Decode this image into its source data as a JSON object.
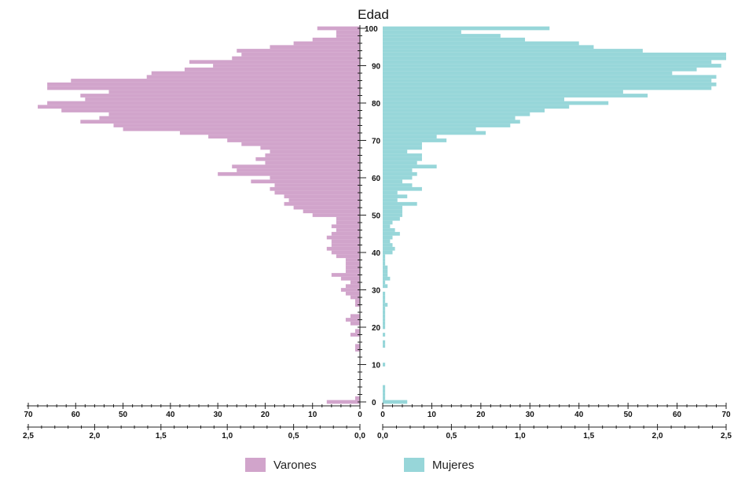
{
  "chart_data": {
    "type": "bar",
    "orientation": "horizontal-population-pyramid",
    "title": "Edad",
    "colors": {
      "varones": "#d1a4cb",
      "mujeres": "#97d6d9"
    },
    "y_axis": {
      "ticks": [
        0,
        10,
        20,
        30,
        40,
        50,
        60,
        70,
        80,
        90,
        100
      ],
      "range": [
        0,
        100
      ]
    },
    "x_axis_count": {
      "range": [
        0,
        70
      ],
      "ticks": [
        "0",
        "10",
        "20",
        "30",
        "40",
        "50",
        "60",
        "70"
      ]
    },
    "x_axis_percent": {
      "range": [
        0,
        2.5
      ],
      "ticks": [
        "0,0",
        "0,5",
        "1,0",
        "1,5",
        "2,0",
        "2,5"
      ]
    },
    "series": [
      {
        "name": "Varones",
        "x_unit": "count",
        "points": [
          {
            "edad": 0,
            "value": 7
          },
          {
            "edad": 1,
            "value": 1
          },
          {
            "edad": 14,
            "value": 1
          },
          {
            "edad": 15,
            "value": 1
          },
          {
            "edad": 18,
            "value": 2
          },
          {
            "edad": 19,
            "value": 1
          },
          {
            "edad": 21,
            "value": 2
          },
          {
            "edad": 22,
            "value": 3
          },
          {
            "edad": 23,
            "value": 2
          },
          {
            "edad": 26,
            "value": 1
          },
          {
            "edad": 27,
            "value": 1
          },
          {
            "edad": 28,
            "value": 2
          },
          {
            "edad": 29,
            "value": 3
          },
          {
            "edad": 30,
            "value": 4
          },
          {
            "edad": 31,
            "value": 3
          },
          {
            "edad": 32,
            "value": 2
          },
          {
            "edad": 33,
            "value": 4
          },
          {
            "edad": 34,
            "value": 6
          },
          {
            "edad": 35,
            "value": 3
          },
          {
            "edad": 36,
            "value": 3
          },
          {
            "edad": 37,
            "value": 3
          },
          {
            "edad": 38,
            "value": 3
          },
          {
            "edad": 39,
            "value": 5
          },
          {
            "edad": 40,
            "value": 6
          },
          {
            "edad": 41,
            "value": 7
          },
          {
            "edad": 42,
            "value": 6
          },
          {
            "edad": 43,
            "value": 6
          },
          {
            "edad": 44,
            "value": 7
          },
          {
            "edad": 45,
            "value": 6
          },
          {
            "edad": 46,
            "value": 5
          },
          {
            "edad": 47,
            "value": 6
          },
          {
            "edad": 48,
            "value": 5
          },
          {
            "edad": 49,
            "value": 5
          },
          {
            "edad": 50,
            "value": 10
          },
          {
            "edad": 51,
            "value": 12
          },
          {
            "edad": 52,
            "value": 14
          },
          {
            "edad": 53,
            "value": 16
          },
          {
            "edad": 54,
            "value": 15
          },
          {
            "edad": 55,
            "value": 16
          },
          {
            "edad": 56,
            "value": 18
          },
          {
            "edad": 57,
            "value": 19
          },
          {
            "edad": 58,
            "value": 18
          },
          {
            "edad": 59,
            "value": 23
          },
          {
            "edad": 60,
            "value": 19
          },
          {
            "edad": 61,
            "value": 30
          },
          {
            "edad": 62,
            "value": 26
          },
          {
            "edad": 63,
            "value": 27
          },
          {
            "edad": 64,
            "value": 20
          },
          {
            "edad": 65,
            "value": 22
          },
          {
            "edad": 66,
            "value": 20
          },
          {
            "edad": 67,
            "value": 19
          },
          {
            "edad": 68,
            "value": 21
          },
          {
            "edad": 69,
            "value": 25
          },
          {
            "edad": 70,
            "value": 28
          },
          {
            "edad": 71,
            "value": 32
          },
          {
            "edad": 72,
            "value": 38
          },
          {
            "edad": 73,
            "value": 50
          },
          {
            "edad": 74,
            "value": 52
          },
          {
            "edad": 75,
            "value": 59
          },
          {
            "edad": 76,
            "value": 55
          },
          {
            "edad": 77,
            "value": 53
          },
          {
            "edad": 78,
            "value": 63
          },
          {
            "edad": 79,
            "value": 68
          },
          {
            "edad": 80,
            "value": 66
          },
          {
            "edad": 81,
            "value": 58
          },
          {
            "edad": 82,
            "value": 59
          },
          {
            "edad": 83,
            "value": 53
          },
          {
            "edad": 84,
            "value": 66
          },
          {
            "edad": 85,
            "value": 66
          },
          {
            "edad": 86,
            "value": 61
          },
          {
            "edad": 87,
            "value": 45
          },
          {
            "edad": 88,
            "value": 44
          },
          {
            "edad": 89,
            "value": 37
          },
          {
            "edad": 90,
            "value": 31
          },
          {
            "edad": 91,
            "value": 36
          },
          {
            "edad": 92,
            "value": 27
          },
          {
            "edad": 93,
            "value": 25
          },
          {
            "edad": 94,
            "value": 26
          },
          {
            "edad": 95,
            "value": 19
          },
          {
            "edad": 96,
            "value": 14
          },
          {
            "edad": 97,
            "value": 10
          },
          {
            "edad": 98,
            "value": 5
          },
          {
            "edad": 99,
            "value": 5
          },
          {
            "edad": 100,
            "value": 9
          }
        ]
      },
      {
        "name": "Mujeres",
        "x_unit": "count",
        "points": [
          {
            "edad": 0,
            "value": 5
          },
          {
            "edad": 1,
            "value": 0.5
          },
          {
            "edad": 2,
            "value": 0.5
          },
          {
            "edad": 3,
            "value": 0.5
          },
          {
            "edad": 4,
            "value": 0.5
          },
          {
            "edad": 10,
            "value": 0.5
          },
          {
            "edad": 15,
            "value": 0.5
          },
          {
            "edad": 16,
            "value": 0.5
          },
          {
            "edad": 18,
            "value": 0.5
          },
          {
            "edad": 20,
            "value": 0.5
          },
          {
            "edad": 21,
            "value": 0.5
          },
          {
            "edad": 22,
            "value": 0.5
          },
          {
            "edad": 23,
            "value": 0.5
          },
          {
            "edad": 24,
            "value": 0.5
          },
          {
            "edad": 25,
            "value": 0.5
          },
          {
            "edad": 26,
            "value": 1
          },
          {
            "edad": 27,
            "value": 0.5
          },
          {
            "edad": 28,
            "value": 0.5
          },
          {
            "edad": 29,
            "value": 0.5
          },
          {
            "edad": 31,
            "value": 1
          },
          {
            "edad": 32,
            "value": 0.5
          },
          {
            "edad": 33,
            "value": 1.5
          },
          {
            "edad": 34,
            "value": 1
          },
          {
            "edad": 35,
            "value": 1
          },
          {
            "edad": 36,
            "value": 1
          },
          {
            "edad": 37,
            "value": 0.5
          },
          {
            "edad": 38,
            "value": 0.5
          },
          {
            "edad": 39,
            "value": 0.5
          },
          {
            "edad": 40,
            "value": 2
          },
          {
            "edad": 41,
            "value": 2.5
          },
          {
            "edad": 42,
            "value": 2
          },
          {
            "edad": 43,
            "value": 1.5
          },
          {
            "edad": 44,
            "value": 2
          },
          {
            "edad": 45,
            "value": 3.5
          },
          {
            "edad": 46,
            "value": 2.5
          },
          {
            "edad": 47,
            "value": 1.5
          },
          {
            "edad": 48,
            "value": 2
          },
          {
            "edad": 49,
            "value": 3.5
          },
          {
            "edad": 50,
            "value": 4
          },
          {
            "edad": 51,
            "value": 4
          },
          {
            "edad": 52,
            "value": 4
          },
          {
            "edad": 53,
            "value": 7
          },
          {
            "edad": 54,
            "value": 3
          },
          {
            "edad": 55,
            "value": 5
          },
          {
            "edad": 56,
            "value": 3
          },
          {
            "edad": 57,
            "value": 8
          },
          {
            "edad": 58,
            "value": 6
          },
          {
            "edad": 59,
            "value": 4
          },
          {
            "edad": 60,
            "value": 6
          },
          {
            "edad": 61,
            "value": 7
          },
          {
            "edad": 62,
            "value": 6
          },
          {
            "edad": 63,
            "value": 11
          },
          {
            "edad": 64,
            "value": 7
          },
          {
            "edad": 65,
            "value": 8
          },
          {
            "edad": 66,
            "value": 8
          },
          {
            "edad": 67,
            "value": 5
          },
          {
            "edad": 68,
            "value": 8
          },
          {
            "edad": 69,
            "value": 8
          },
          {
            "edad": 70,
            "value": 13
          },
          {
            "edad": 71,
            "value": 11
          },
          {
            "edad": 72,
            "value": 21
          },
          {
            "edad": 73,
            "value": 19
          },
          {
            "edad": 74,
            "value": 26
          },
          {
            "edad": 75,
            "value": 28
          },
          {
            "edad": 76,
            "value": 27
          },
          {
            "edad": 77,
            "value": 30
          },
          {
            "edad": 78,
            "value": 33
          },
          {
            "edad": 79,
            "value": 38
          },
          {
            "edad": 80,
            "value": 46
          },
          {
            "edad": 81,
            "value": 37
          },
          {
            "edad": 82,
            "value": 54
          },
          {
            "edad": 83,
            "value": 49
          },
          {
            "edad": 84,
            "value": 67
          },
          {
            "edad": 85,
            "value": 68
          },
          {
            "edad": 86,
            "value": 67
          },
          {
            "edad": 87,
            "value": 68
          },
          {
            "edad": 88,
            "value": 59
          },
          {
            "edad": 89,
            "value": 64
          },
          {
            "edad": 90,
            "value": 69
          },
          {
            "edad": 91,
            "value": 67
          },
          {
            "edad": 92,
            "value": 70
          },
          {
            "edad": 93,
            "value": 70
          },
          {
            "edad": 94,
            "value": 53
          },
          {
            "edad": 95,
            "value": 43
          },
          {
            "edad": 96,
            "value": 40
          },
          {
            "edad": 97,
            "value": 29
          },
          {
            "edad": 98,
            "value": 24
          },
          {
            "edad": 99,
            "value": 16
          },
          {
            "edad": 100,
            "value": 34
          }
        ]
      }
    ]
  },
  "legend": {
    "varones_label": "Varones",
    "mujeres_label": "Mujeres"
  }
}
